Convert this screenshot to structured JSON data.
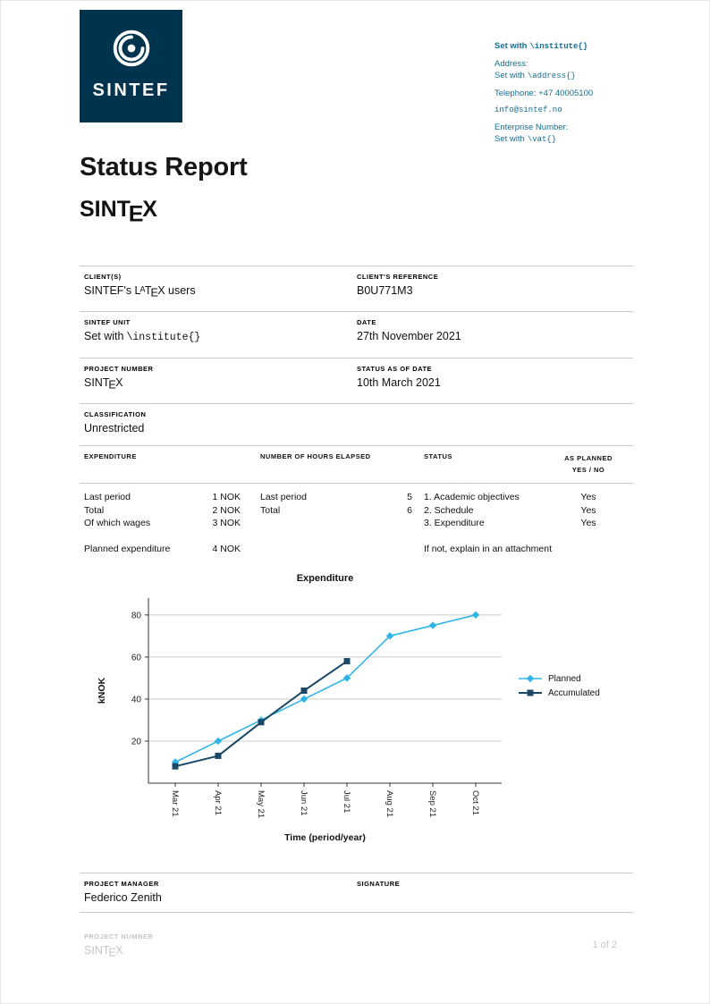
{
  "page": {
    "title": "Status Report",
    "wordmark": "SINTeX"
  },
  "brand": {
    "logo_text": "SINTEF"
  },
  "contact": {
    "set_with": "Set with",
    "institute_cmd": "\\institute{}",
    "address_label": "Address:",
    "address_cmd": "\\address{}",
    "telephone": "Telephone: +47 40005100",
    "email": "info@sintef.no",
    "enterprise_label": "Enterprise Number:",
    "vat_cmd": "\\vat{}"
  },
  "info_grid": {
    "client_label": "CLIENT(S)",
    "client_value": "SINTEF's LaTeX users",
    "client_ref_label": "CLIENT'S REFERENCE",
    "client_ref_value": "B0U771M3",
    "unit_label": "SINTEF UNIT",
    "unit_prefix": "Set with",
    "unit_cmd": "\\institute{}",
    "date_label": "DATE",
    "date_value": "27th November 2021",
    "project_number_label": "PROJECT NUMBER",
    "project_number_value": "SINTeX",
    "status_date_label": "STATUS AS OF DATE",
    "status_date_value": "10th March 2021",
    "classification_label": "CLASSIFICATION",
    "classification_value": "Unrestricted"
  },
  "worktable": {
    "headers": {
      "expenditure": "EXPENDITURE",
      "hours": "NUMBER OF HOURS ELAPSED",
      "status": "STATUS",
      "as_planned_line1": "AS PLANNED",
      "as_planned_line2": "YES / NO"
    },
    "expenditure_rows": [
      {
        "label": "Last period",
        "value": "1 NOK"
      },
      {
        "label": "Total",
        "value": "2 NOK"
      },
      {
        "label": "Of which wages",
        "value": "3 NOK"
      }
    ],
    "planned_expenditure": {
      "label": "Planned expenditure",
      "value": "4 NOK"
    },
    "hours_rows": [
      {
        "label": "Last period",
        "value": "5"
      },
      {
        "label": "Total",
        "value": "6"
      }
    ],
    "status_rows": [
      {
        "label": "1. Academic objectives",
        "as_planned": "Yes"
      },
      {
        "label": "2. Schedule",
        "as_planned": "Yes"
      },
      {
        "label": "3. Expenditure",
        "as_planned": "Yes"
      }
    ],
    "status_note": "If not, explain in an attachment"
  },
  "chart_data": {
    "type": "line",
    "title": "Expenditure",
    "xlabel": "Time (period/year)",
    "ylabel": "kNOK",
    "categories": [
      "Mar 21",
      "Apr 21",
      "May 21",
      "Jun 21",
      "Jul 21",
      "Aug 21",
      "Sep 21",
      "Oct 21"
    ],
    "yticks": [
      20,
      40,
      60,
      80
    ],
    "ylim": [
      0,
      88
    ],
    "grid": "horizontal",
    "legend_position": "right",
    "series": [
      {
        "name": "Planned",
        "color": "#30b5e6",
        "marker": "diamond",
        "values": [
          10,
          20,
          30,
          40,
          50,
          70,
          75,
          80
        ]
      },
      {
        "name": "Accumulated",
        "color": "#1a4867",
        "marker": "square",
        "values": [
          8,
          13,
          29,
          44,
          58
        ]
      }
    ]
  },
  "signature": {
    "manager_label": "PROJECT MANAGER",
    "manager_value": "Federico Zenith",
    "signature_label": "SIGNATURE"
  },
  "footer": {
    "project_number_label": "PROJECT NUMBER",
    "project_number_value": "SINTeX",
    "page_indicator": "1 of 2"
  }
}
